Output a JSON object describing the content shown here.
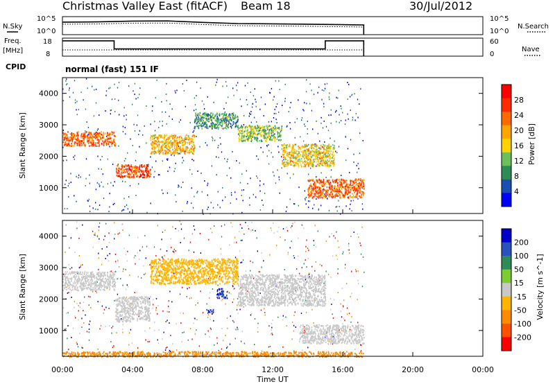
{
  "header": {
    "title": "Christmas Valley East (fitACF)",
    "beam": "Beam 18",
    "date": "30/Jul/2012"
  },
  "top_panels": {
    "nsky_label": "N.Sky",
    "nsky_ticks": [
      "10^5",
      "10^0"
    ],
    "nsearch_label": "N.Search",
    "freq_label": "Freq.",
    "freq_unit": "[MHz]",
    "freq_ticks": [
      "18",
      "8"
    ],
    "nave_label": "Nave",
    "nave_ticks": [
      "60",
      "0"
    ],
    "cpid_label": "CPID",
    "cpid_value": "normal (fast) 151 IF"
  },
  "colors": {
    "power_scale": [
      "#0000ff",
      "#1a4fb0",
      "#2e8b57",
      "#6cbf5a",
      "#ffd200",
      "#ffa500",
      "#ff6a00",
      "#ff2a00",
      "#ff0000"
    ],
    "velocity_scale": [
      "#0000c8",
      "#2a52be",
      "#2e8b57",
      "#7ccd32",
      "#c8c8c8",
      "#ffb400",
      "#ff8c00",
      "#ff5000",
      "#ff0000"
    ]
  },
  "chart_data": [
    {
      "type": "line",
      "title": "",
      "xlabel": "",
      "ylabel": "N.Sky",
      "x_range": [
        0,
        24
      ],
      "y_scale": "log",
      "ylim": [
        1,
        100000
      ],
      "series": [
        {
          "values": [
            [
              0.0,
              3000
            ],
            [
              2.0,
              3500
            ],
            [
              4.0,
              6000
            ],
            [
              6.0,
              6500
            ],
            [
              8.0,
              2500
            ],
            [
              10.0,
              1200
            ],
            [
              12.0,
              1000
            ],
            [
              14.0,
              800
            ],
            [
              16.0,
              600
            ],
            [
              17.2,
              500
            ]
          ]
        }
      ]
    },
    {
      "type": "line",
      "title": "",
      "ylabel": "Freq. [MHz]",
      "x_range": [
        0,
        24
      ],
      "ylim": [
        8,
        18
      ],
      "series": [
        {
          "values": [
            [
              0.0,
              16.5
            ],
            [
              2.95,
              16.5
            ],
            [
              2.95,
              12.0
            ],
            [
              15.0,
              12.0
            ],
            [
              15.0,
              16.5
            ],
            [
              17.2,
              16.5
            ]
          ]
        }
      ]
    },
    {
      "type": "heatmap",
      "title": "",
      "xlabel": "",
      "ylabel": "Slant Range [km]",
      "x_range": [
        0,
        24
      ],
      "ylim": [
        180,
        4500
      ],
      "y_ticks": [
        1000,
        2000,
        3000,
        4000
      ],
      "colorbar_label": "Power [dB]",
      "colorbar_ticks": [
        4,
        8,
        12,
        16,
        20,
        24,
        28
      ],
      "colorbar_range": [
        0,
        30
      ],
      "features": [
        {
          "x": [
            0.0,
            3.0
          ],
          "range": [
            2350,
            2800
          ],
          "value": 22
        },
        {
          "x": [
            3.0,
            5.0
          ],
          "range": [
            1350,
            1750
          ],
          "value": 24
        },
        {
          "x": [
            5.0,
            7.5
          ],
          "range": [
            2100,
            2700
          ],
          "value": 17
        },
        {
          "x": [
            7.5,
            10.0
          ],
          "range": [
            2900,
            3400
          ],
          "value": 9
        },
        {
          "x": [
            10.0,
            12.5
          ],
          "range": [
            2500,
            3000
          ],
          "value": 12
        },
        {
          "x": [
            12.5,
            15.5
          ],
          "range": [
            1700,
            2400
          ],
          "value": 16
        },
        {
          "x": [
            14.0,
            17.2
          ],
          "range": [
            700,
            1300
          ],
          "value": 22
        }
      ]
    },
    {
      "type": "heatmap",
      "title": "",
      "xlabel": "Time UT",
      "ylabel": "Slant Range [km]",
      "x_range": [
        0,
        24
      ],
      "x_ticks": [
        "00:00",
        "04:00",
        "08:00",
        "12:00",
        "16:00",
        "20:00",
        "00:00"
      ],
      "ylim": [
        180,
        4500
      ],
      "y_ticks": [
        1000,
        2000,
        3000,
        4000
      ],
      "colorbar_label": "Velocity [m s^-1]",
      "colorbar_ticks": [
        200,
        100,
        50,
        15,
        -15,
        -50,
        -100,
        -200
      ],
      "features": [
        {
          "x": [
            0.0,
            3.0
          ],
          "range": [
            2300,
            2900
          ],
          "value": 0
        },
        {
          "x": [
            3.0,
            5.0
          ],
          "range": [
            1300,
            2100
          ],
          "value": 0
        },
        {
          "x": [
            5.0,
            10.0
          ],
          "range": [
            2500,
            3300
          ],
          "value": -40
        },
        {
          "x": [
            8.8,
            9.4
          ],
          "range": [
            2050,
            2350
          ],
          "value": 200
        },
        {
          "x": [
            8.2,
            8.6
          ],
          "range": [
            1550,
            1700
          ],
          "value": 200
        },
        {
          "x": [
            10.0,
            15.0
          ],
          "range": [
            1800,
            2800
          ],
          "value": 0
        },
        {
          "x": [
            13.5,
            17.2
          ],
          "range": [
            600,
            1200
          ],
          "value": 0
        },
        {
          "x": [
            0.0,
            17.2
          ],
          "range": [
            180,
            350
          ],
          "value": -60
        }
      ]
    }
  ]
}
